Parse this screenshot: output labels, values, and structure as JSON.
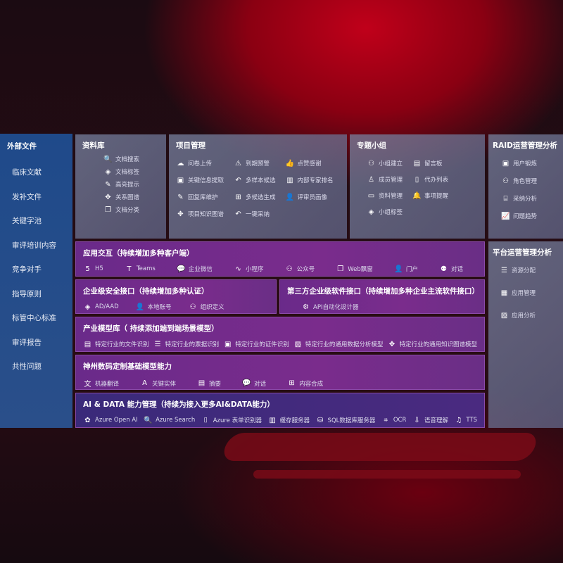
{
  "left": {
    "title": "外部文件",
    "items": [
      "临床文献",
      "发补文件",
      "关键字池",
      "审评培训内容",
      "竞争对手",
      "指导原则",
      "标管中心标准",
      "审评报告",
      "共性问题"
    ]
  },
  "library": {
    "title": "资料库",
    "items": [
      {
        "icon": "document-search-icon",
        "g": "🔍",
        "label": "文档搜索"
      },
      {
        "icon": "tag-icon",
        "g": "◈",
        "label": "文档标签"
      },
      {
        "icon": "pen-icon",
        "g": "✎",
        "label": "高亮提示"
      },
      {
        "icon": "graph-icon",
        "g": "✥",
        "label": "关系图谱"
      },
      {
        "icon": "documents-icon",
        "g": "❐",
        "label": "文档分类"
      }
    ]
  },
  "project": {
    "title": "项目管理",
    "items": [
      {
        "icon": "cloud-upload-icon",
        "g": "☁",
        "label": "问卷上传"
      },
      {
        "icon": "alarm-icon",
        "g": "⚠",
        "label": "到期预警"
      },
      {
        "icon": "thumbs-up-icon",
        "g": "👍",
        "label": "点赞感谢"
      },
      {
        "icon": "extract-icon",
        "g": "▣",
        "label": "关键信息提取"
      },
      {
        "icon": "reply-icon",
        "g": "↶",
        "label": "多样本候选"
      },
      {
        "icon": "ranking-icon",
        "g": "▥",
        "label": "内部专家排名"
      },
      {
        "icon": "edit-icon",
        "g": "✎",
        "label": "回复库维护"
      },
      {
        "icon": "puzzle-icon",
        "g": "⊞",
        "label": "多候选生成"
      },
      {
        "icon": "user-icon",
        "g": "👤",
        "label": "评审员画像"
      },
      {
        "icon": "graph-icon",
        "g": "✥",
        "label": "项目知识图谱"
      },
      {
        "icon": "reply-icon",
        "g": "↶",
        "label": "一键采纳"
      }
    ]
  },
  "group": {
    "title": "专题小组",
    "items": [
      {
        "icon": "users-icon",
        "g": "⚇",
        "label": "小组建立"
      },
      {
        "icon": "bbs-icon",
        "g": "▤",
        "label": "留言板"
      },
      {
        "icon": "member-icon",
        "g": "♙",
        "label": "成员管理"
      },
      {
        "icon": "clipboard-icon",
        "g": "▯",
        "label": "代办列表"
      },
      {
        "icon": "folder-icon",
        "g": "▭",
        "label": "资料管理"
      },
      {
        "icon": "bell-icon",
        "g": "🔔",
        "label": "事项提醒"
      },
      {
        "icon": "tag-icon",
        "g": "◈",
        "label": "小组标签"
      }
    ]
  },
  "raid": {
    "title": "RAID运营管理分析",
    "items": [
      {
        "icon": "id-card-icon",
        "g": "▣",
        "label": "用户锻炼"
      },
      {
        "icon": "users-icon",
        "g": "⚇",
        "label": "角色管理"
      },
      {
        "icon": "qa-icon",
        "g": "⌸",
        "label": "采纳分析"
      },
      {
        "icon": "trend-icon",
        "g": "📈",
        "label": "问题趋势"
      }
    ]
  },
  "platform": {
    "title": "平台运营管理分析",
    "items": [
      {
        "icon": "checklist-icon",
        "g": "☰",
        "label": "资源分配"
      },
      {
        "icon": "apps-icon",
        "g": "▦",
        "label": "应用管理"
      },
      {
        "icon": "analysis-icon",
        "g": "▨",
        "label": "应用分析"
      }
    ]
  },
  "app": {
    "title": "应用交互（持续增加多种客户端）",
    "items": [
      {
        "icon": "html5-icon",
        "g": "5",
        "label": "H5"
      },
      {
        "icon": "teams-icon",
        "g": "T",
        "label": "Teams"
      },
      {
        "icon": "wecom-icon",
        "g": "💬",
        "label": "企业微信"
      },
      {
        "icon": "miniprogram-icon",
        "g": "∿",
        "label": "小程序"
      },
      {
        "icon": "official-account-icon",
        "g": "⚇",
        "label": "公众号"
      },
      {
        "icon": "window-icon",
        "g": "❐",
        "label": "Web飘窗"
      },
      {
        "icon": "portal-icon",
        "g": "👤",
        "label": "门户"
      },
      {
        "icon": "chat-icon",
        "g": "⚉",
        "label": "对话"
      }
    ]
  },
  "security": {
    "title": "企业级安全接口（持续增加多种认证）",
    "items": [
      {
        "icon": "ad-icon",
        "g": "◈",
        "label": "AD/AAD"
      },
      {
        "icon": "local-account-icon",
        "g": "👤",
        "label": "本地账号"
      },
      {
        "icon": "org-icon",
        "g": "⚇",
        "label": "组织定义"
      }
    ]
  },
  "third": {
    "title": "第三方企业级软件接口（持续增加多种企业主流软件接口）",
    "items": [
      {
        "icon": "api-gear-icon",
        "g": "⚙",
        "label": "API自动化设计器"
      }
    ]
  },
  "industry": {
    "title": "产业模型库（ 持续添加端到端场景模型）",
    "items": [
      {
        "icon": "file-icon",
        "g": "▤",
        "label": "特定行业的文件识别"
      },
      {
        "icon": "receipt-icon",
        "g": "☰",
        "label": "特定行业的票据识别"
      },
      {
        "icon": "id-card-icon",
        "g": "▣",
        "label": "特定行业的证件识别"
      },
      {
        "icon": "chart-icon",
        "g": "▨",
        "label": "特定行业的通用数据分析模型"
      },
      {
        "icon": "graph-icon",
        "g": "✥",
        "label": "特定行业的通用知识图谱模型"
      }
    ]
  },
  "base": {
    "title": "神州数码定制基础模型能力",
    "items": [
      {
        "icon": "translate-icon",
        "g": "文",
        "label": "机器翻译"
      },
      {
        "icon": "entity-icon",
        "g": "A",
        "label": "关键实体"
      },
      {
        "icon": "summary-icon",
        "g": "▤",
        "label": "摘要"
      },
      {
        "icon": "chat-icon",
        "g": "💬",
        "label": "对话"
      },
      {
        "icon": "compose-icon",
        "g": "⊞",
        "label": "内容合成"
      }
    ]
  },
  "ai": {
    "title": "AI & DATA 能力管理（持续为接入更多AI&DATA能力）",
    "items": [
      {
        "icon": "openai-icon",
        "g": "✿",
        "label": "Azure Open AI"
      },
      {
        "icon": "search-icon",
        "g": "🔍",
        "label": "Azure Search"
      },
      {
        "icon": "form-recognizer-icon",
        "g": "⌷",
        "label": "Azure 表单识别器"
      },
      {
        "icon": "cache-server-icon",
        "g": "▥",
        "label": "缓存服务器"
      },
      {
        "icon": "sql-icon",
        "g": "⛁",
        "label": "SQL数据库服务器"
      },
      {
        "icon": "ocr-icon",
        "g": "⌗",
        "label": "OCR"
      },
      {
        "icon": "speech-icon",
        "g": "⇩",
        "label": "语音理解"
      },
      {
        "icon": "tts-icon",
        "g": "♫",
        "label": "TTS"
      }
    ]
  }
}
